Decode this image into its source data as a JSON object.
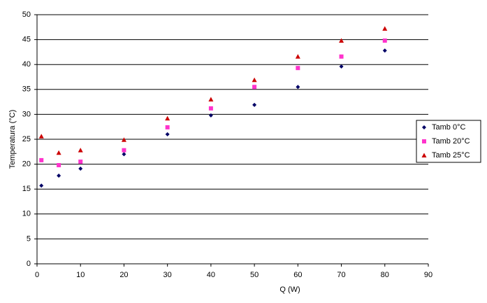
{
  "chart_data": {
    "type": "scatter",
    "x_label": "Q (W)",
    "y_label": "Temperatura (°C)",
    "xlim": [
      0,
      90
    ],
    "xticks": [
      0,
      10,
      20,
      30,
      40,
      50,
      60,
      70,
      80,
      90
    ],
    "ylim": [
      0,
      50
    ],
    "yticks": [
      0,
      5,
      10,
      15,
      20,
      25,
      30,
      35,
      40,
      45,
      50
    ],
    "grid": true,
    "legend": "right",
    "series": [
      {
        "name": "Tamb 0°C",
        "color": "#000066",
        "marker": "diamond",
        "x": [
          1,
          5,
          10,
          20,
          30,
          40,
          50,
          60,
          70,
          80
        ],
        "values": [
          15.7,
          17.7,
          19.1,
          22.0,
          26.0,
          29.8,
          31.9,
          35.5,
          39.6,
          42.8
        ]
      },
      {
        "name": "Tamb 20°C",
        "color": "#ff33cc",
        "marker": "square",
        "x": [
          1,
          5,
          10,
          20,
          30,
          40,
          50,
          60,
          70,
          80
        ],
        "values": [
          20.8,
          19.8,
          20.5,
          22.8,
          27.4,
          31.2,
          35.5,
          39.3,
          41.6,
          44.8
        ]
      },
      {
        "name": "Tamb 25°C",
        "color": "#cc0000",
        "marker": "triangle",
        "x": [
          1,
          5,
          10,
          20,
          30,
          40,
          50,
          60,
          70,
          80
        ],
        "values": [
          25.6,
          22.3,
          22.8,
          24.9,
          29.2,
          33.0,
          36.9,
          41.6,
          44.8,
          47.2
        ]
      }
    ]
  }
}
